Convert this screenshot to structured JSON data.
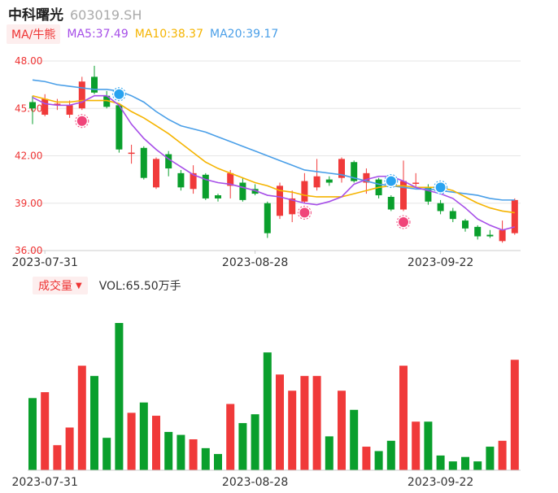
{
  "header": {
    "name": "中科曙光",
    "code": "603019.SH"
  },
  "ma_legend": {
    "tag": "MA/牛熊",
    "ma5": {
      "label": "MA5:37.49",
      "color": "#a64ee8"
    },
    "ma10": {
      "label": "MA10:38.37",
      "color": "#f5b400"
    },
    "ma20": {
      "label": "MA20:39.17",
      "color": "#4a9fe8"
    }
  },
  "volume_legend": {
    "tag": "成交量",
    "value": "VOL:65.50万手"
  },
  "colors": {
    "up": "#f03a3a",
    "down": "#0a9f2c"
  },
  "chart_data": [
    {
      "type": "candlestick",
      "title": "中科曙光 603019.SH",
      "y_ticks": [
        "48.00",
        "45.00",
        "42.00",
        "39.00",
        "36.00"
      ],
      "ylim": [
        36,
        48
      ],
      "x_ticks": [
        {
          "label": "2023-07-31",
          "index": 1
        },
        {
          "label": "2023-08-28",
          "index": 18
        },
        {
          "label": "2023-09-22",
          "index": 33
        }
      ],
      "candles": [
        {
          "o": 45.4,
          "c": 45.0,
          "h": 45.8,
          "l": 44.0
        },
        {
          "o": 44.6,
          "c": 45.6,
          "h": 45.9,
          "l": 44.5
        },
        {
          "o": 45.3,
          "c": 45.3,
          "h": 45.6,
          "l": 44.9
        },
        {
          "o": 44.6,
          "c": 45.2,
          "h": 45.5,
          "l": 44.4
        },
        {
          "o": 45.0,
          "c": 46.7,
          "h": 47.0,
          "l": 44.9
        },
        {
          "o": 47.0,
          "c": 46.0,
          "h": 47.7,
          "l": 45.9
        },
        {
          "o": 45.8,
          "c": 45.1,
          "h": 46.1,
          "l": 45.0
        },
        {
          "o": 45.2,
          "c": 42.4,
          "h": 45.3,
          "l": 42.2
        },
        {
          "o": 42.2,
          "c": 42.2,
          "h": 42.7,
          "l": 41.5
        },
        {
          "o": 42.5,
          "c": 40.6,
          "h": 42.6,
          "l": 40.5
        },
        {
          "o": 40.0,
          "c": 41.8,
          "h": 41.9,
          "l": 39.9
        },
        {
          "o": 42.1,
          "c": 41.2,
          "h": 42.3,
          "l": 40.7
        },
        {
          "o": 40.9,
          "c": 40.0,
          "h": 41.1,
          "l": 39.8
        },
        {
          "o": 39.9,
          "c": 40.9,
          "h": 41.4,
          "l": 39.6
        },
        {
          "o": 40.8,
          "c": 39.3,
          "h": 40.9,
          "l": 39.2
        },
        {
          "o": 39.5,
          "c": 39.3,
          "h": 39.6,
          "l": 39.1
        },
        {
          "o": 40.1,
          "c": 40.9,
          "h": 41.1,
          "l": 39.3
        },
        {
          "o": 40.3,
          "c": 39.2,
          "h": 40.6,
          "l": 39.1
        },
        {
          "o": 39.9,
          "c": 39.6,
          "h": 40.2,
          "l": 39.5
        },
        {
          "o": 39.0,
          "c": 37.1,
          "h": 39.1,
          "l": 36.8
        },
        {
          "o": 38.2,
          "c": 40.1,
          "h": 40.3,
          "l": 38.0
        },
        {
          "o": 38.3,
          "c": 39.3,
          "h": 39.8,
          "l": 37.8
        },
        {
          "o": 39.1,
          "c": 40.4,
          "h": 40.9,
          "l": 39.0
        },
        {
          "o": 40.0,
          "c": 40.7,
          "h": 41.8,
          "l": 39.8
        },
        {
          "o": 40.5,
          "c": 40.3,
          "h": 40.7,
          "l": 40.1
        },
        {
          "o": 40.6,
          "c": 41.8,
          "h": 41.9,
          "l": 40.3
        },
        {
          "o": 41.6,
          "c": 40.4,
          "h": 41.7,
          "l": 40.3
        },
        {
          "o": 40.3,
          "c": 40.9,
          "h": 41.2,
          "l": 39.6
        },
        {
          "o": 40.5,
          "c": 39.5,
          "h": 40.6,
          "l": 39.3
        },
        {
          "o": 39.4,
          "c": 38.6,
          "h": 39.5,
          "l": 38.5
        },
        {
          "o": 38.6,
          "c": 40.4,
          "h": 41.7,
          "l": 38.5
        },
        {
          "o": 40.3,
          "c": 40.3,
          "h": 40.9,
          "l": 40.0
        },
        {
          "o": 40.0,
          "c": 39.1,
          "h": 40.2,
          "l": 38.9
        },
        {
          "o": 39.0,
          "c": 38.5,
          "h": 39.2,
          "l": 38.3
        },
        {
          "o": 38.5,
          "c": 38.0,
          "h": 38.7,
          "l": 37.8
        },
        {
          "o": 37.9,
          "c": 37.4,
          "h": 38.0,
          "l": 37.2
        },
        {
          "o": 37.5,
          "c": 36.9,
          "h": 37.6,
          "l": 36.7
        },
        {
          "o": 37.0,
          "c": 36.9,
          "h": 37.3,
          "l": 36.8
        },
        {
          "o": 36.6,
          "c": 37.3,
          "h": 37.9,
          "l": 36.5
        },
        {
          "o": 37.1,
          "c": 39.2,
          "h": 39.3,
          "l": 37.0
        }
      ],
      "ma5": [
        45.7,
        45.3,
        45.2,
        45.2,
        45.4,
        45.8,
        45.8,
        45.2,
        44.0,
        43.1,
        42.4,
        41.8,
        41.3,
        40.8,
        40.5,
        40.3,
        40.2,
        40.0,
        39.8,
        39.5,
        39.4,
        39.2,
        39.0,
        38.9,
        39.1,
        39.4,
        40.2,
        40.5,
        40.7,
        40.7,
        40.4,
        40.0,
        39.8,
        39.6,
        39.3,
        38.7,
        38.0,
        37.6,
        37.3,
        37.5
      ],
      "ma10": [
        45.8,
        45.6,
        45.4,
        45.4,
        45.5,
        45.5,
        45.5,
        45.3,
        44.8,
        44.4,
        43.9,
        43.4,
        42.8,
        42.2,
        41.6,
        41.2,
        40.9,
        40.6,
        40.3,
        40.1,
        39.8,
        39.7,
        39.5,
        39.4,
        39.4,
        39.4,
        39.6,
        39.8,
        40.0,
        40.1,
        40.1,
        40.0,
        40.0,
        40.0,
        39.8,
        39.4,
        39.0,
        38.7,
        38.5,
        38.4
      ],
      "ma20": [
        46.8,
        46.7,
        46.5,
        46.4,
        46.3,
        46.2,
        46.2,
        46.1,
        45.8,
        45.4,
        44.8,
        44.3,
        43.9,
        43.7,
        43.5,
        43.2,
        42.9,
        42.6,
        42.3,
        42.0,
        41.7,
        41.4,
        41.1,
        41.0,
        40.9,
        40.8,
        40.6,
        40.4,
        40.2,
        40.1,
        40.0,
        39.9,
        39.9,
        39.8,
        39.7,
        39.6,
        39.5,
        39.3,
        39.2,
        39.2
      ]
    },
    {
      "type": "bar",
      "title": "成交量",
      "x_ticks": [
        {
          "label": "2023-07-31",
          "index": 1
        },
        {
          "label": "2023-08-28",
          "index": 18
        },
        {
          "label": "2023-09-22",
          "index": 33
        }
      ],
      "values": [
        0.49,
        0.53,
        0.17,
        0.29,
        0.71,
        0.64,
        0.22,
        1.0,
        0.39,
        0.46,
        0.37,
        0.26,
        0.24,
        0.21,
        0.15,
        0.11,
        0.45,
        0.32,
        0.38,
        0.8,
        0.65,
        0.54,
        0.64,
        0.64,
        0.23,
        0.54,
        0.41,
        0.16,
        0.13,
        0.2,
        0.71,
        0.33,
        0.33,
        0.1,
        0.06,
        0.09,
        0.06,
        0.16,
        0.2,
        0.75
      ]
    }
  ]
}
